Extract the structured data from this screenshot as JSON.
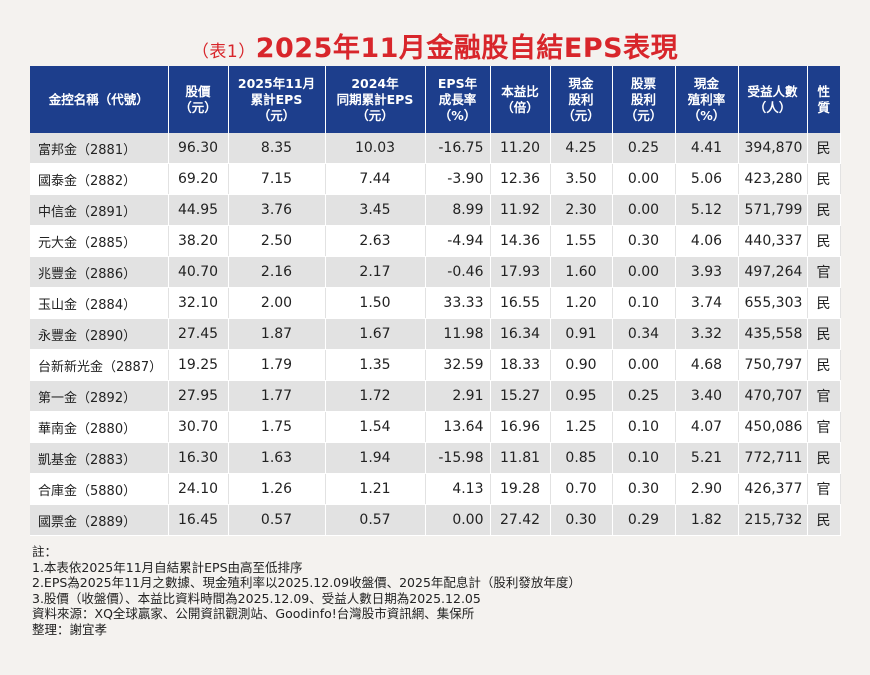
{
  "header": {
    "title_prefix": "（表1）",
    "title_main": "2025年11月金融股自結EPS表現"
  },
  "table": {
    "columns": [
      "金控名稱（代號）",
      "股價\n（元）",
      "2025年11月\n累計EPS\n（元）",
      "2024年\n同期累計EPS\n（元）",
      "EPS年\n成長率\n（%）",
      "本益比\n（倍）",
      "現金\n股利\n（元）",
      "股票\n股利\n（元）",
      "現金\n殖利率\n（%）",
      "受益人數\n（人）",
      "性\n質"
    ],
    "rows": [
      [
        "富邦金（2881）",
        "96.30",
        "8.35",
        "10.03",
        "-16.75",
        "11.20",
        "4.25",
        "0.25",
        "4.41",
        "394,870",
        "民"
      ],
      [
        "國泰金（2882）",
        "69.20",
        "7.15",
        "7.44",
        "-3.90",
        "12.36",
        "3.50",
        "0.00",
        "5.06",
        "423,280",
        "民"
      ],
      [
        "中信金（2891）",
        "44.95",
        "3.76",
        "3.45",
        "8.99",
        "11.92",
        "2.30",
        "0.00",
        "5.12",
        "571,799",
        "民"
      ],
      [
        "元大金（2885）",
        "38.20",
        "2.50",
        "2.63",
        "-4.94",
        "14.36",
        "1.55",
        "0.30",
        "4.06",
        "440,337",
        "民"
      ],
      [
        "兆豐金（2886）",
        "40.70",
        "2.16",
        "2.17",
        "-0.46",
        "17.93",
        "1.60",
        "0.00",
        "3.93",
        "497,264",
        "官"
      ],
      [
        "玉山金（2884）",
        "32.10",
        "2.00",
        "1.50",
        "33.33",
        "16.55",
        "1.20",
        "0.10",
        "3.74",
        "655,303",
        "民"
      ],
      [
        "永豐金（2890）",
        "27.45",
        "1.87",
        "1.67",
        "11.98",
        "16.34",
        "0.91",
        "0.34",
        "3.32",
        "435,558",
        "民"
      ],
      [
        "台新新光金（2887）",
        "19.25",
        "1.79",
        "1.35",
        "32.59",
        "18.33",
        "0.90",
        "0.00",
        "4.68",
        "750,797",
        "民"
      ],
      [
        "第一金（2892）",
        "27.95",
        "1.77",
        "1.72",
        "2.91",
        "15.27",
        "0.95",
        "0.25",
        "3.40",
        "470,707",
        "官"
      ],
      [
        "華南金（2880）",
        "30.70",
        "1.75",
        "1.54",
        "13.64",
        "16.96",
        "1.25",
        "0.10",
        "4.07",
        "450,086",
        "官"
      ],
      [
        "凱基金（2883）",
        "16.30",
        "1.63",
        "1.94",
        "-15.98",
        "11.81",
        "0.85",
        "0.10",
        "5.21",
        "772,711",
        "民"
      ],
      [
        "合庫金（5880）",
        "24.10",
        "1.26",
        "1.21",
        "4.13",
        "19.28",
        "0.70",
        "0.30",
        "2.90",
        "426,377",
        "官"
      ],
      [
        "國票金（2889）",
        "16.45",
        "0.57",
        "0.57",
        "0.00",
        "27.42",
        "0.30",
        "0.29",
        "1.82",
        "215,732",
        "民"
      ]
    ]
  },
  "notes": [
    "註：",
    "1.本表依2025年11月自結累計EPS由高至低排序",
    "2.EPS為2025年11月之數據、現金殖利率以2025.12.09收盤價、2025年配息計（股利發放年度）",
    "3.股價（收盤價）、本益比資料時間為2025.12.09、受益人數日期為2025.12.05",
    "資料來源：XQ全球贏家、公開資訊觀測站、Goodinfo!台灣股市資訊網、集保所",
    "整理：謝宜孝"
  ]
}
